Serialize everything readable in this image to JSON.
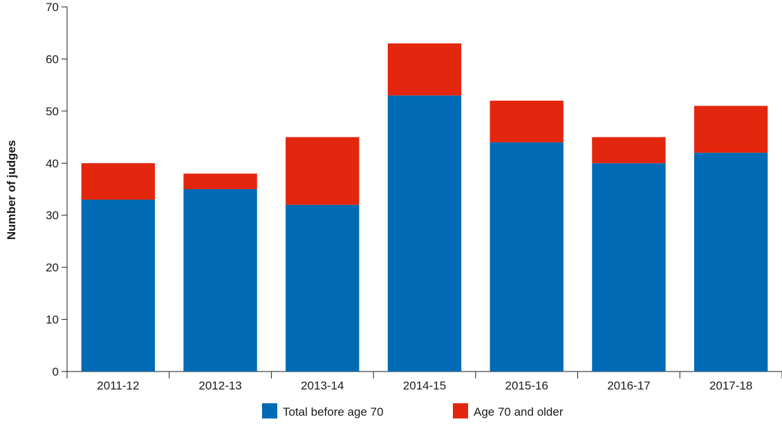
{
  "chart_data": {
    "type": "bar",
    "stacked": true,
    "title": "",
    "xlabel": "",
    "ylabel": "Number of judges",
    "ylim": [
      0,
      70
    ],
    "yticks": [
      0,
      10,
      20,
      30,
      40,
      50,
      60,
      70
    ],
    "categories": [
      "2011-12",
      "2012-13",
      "2013-14",
      "2014-15",
      "2015-16",
      "2016-17",
      "2017-18"
    ],
    "series": [
      {
        "name": "Total before age 70",
        "color": "#006ab4",
        "values": [
          33,
          35,
          32,
          53,
          44,
          40,
          42
        ]
      },
      {
        "name": "Age 70 and older",
        "color": "#e3260e",
        "values": [
          7,
          3,
          13,
          10,
          8,
          5,
          9
        ]
      }
    ],
    "grid": false,
    "legend_position": "bottom"
  }
}
